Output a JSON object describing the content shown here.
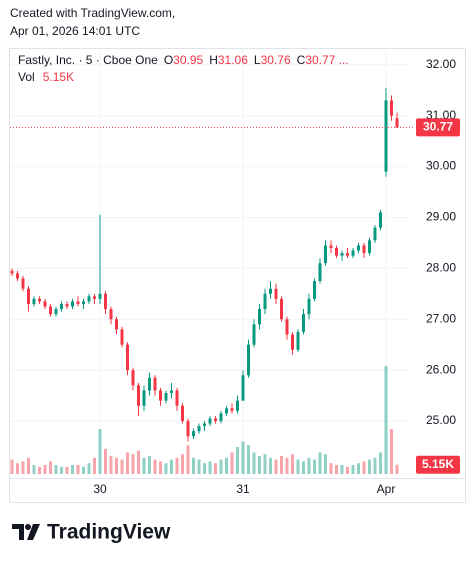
{
  "header": {
    "line1": "Created with TradingView.com,",
    "line2": "Apr 01, 2026 14:01 UTC"
  },
  "footer": {
    "brand": "TradingView"
  },
  "chart_data": {
    "type": "candlestick",
    "legend": {
      "symbol": "Fastly, Inc. · 5 · Cboe One",
      "ohlc": [
        {
          "label": "O",
          "value": 30.95
        },
        {
          "label": "H",
          "value": 31.06
        },
        {
          "label": "L",
          "value": 30.76
        },
        {
          "label": "C",
          "value": 30.77,
          "value_label": "30.77 ..."
        }
      ],
      "volume": {
        "label": "Vol",
        "value": 5150,
        "value_label": "5.15K"
      }
    },
    "up_color": "#089981",
    "down_color": "#f23645",
    "categories": [
      null,
      null,
      null,
      null,
      null,
      null,
      null,
      null,
      null,
      null,
      null,
      null,
      null,
      null,
      null,
      null,
      "30",
      null,
      null,
      null,
      null,
      null,
      null,
      null,
      null,
      null,
      null,
      null,
      null,
      null,
      null,
      null,
      null,
      null,
      null,
      null,
      null,
      null,
      null,
      null,
      null,
      null,
      "31",
      null,
      null,
      null,
      null,
      null,
      null,
      null,
      null,
      null,
      null,
      null,
      null,
      null,
      null,
      null,
      null,
      null,
      null,
      null,
      null,
      null,
      null,
      null,
      null,
      null,
      "Apr",
      null,
      null
    ],
    "open": [
      27.95,
      27.9,
      27.8,
      27.6,
      27.3,
      27.4,
      27.35,
      27.25,
      27.1,
      27.2,
      27.3,
      27.25,
      27.35,
      27.3,
      27.35,
      27.45,
      27.4,
      27.5,
      27.2,
      27.0,
      26.8,
      26.5,
      26.0,
      25.7,
      25.3,
      25.6,
      25.85,
      25.6,
      25.4,
      25.55,
      25.6,
      25.3,
      25.0,
      24.7,
      24.8,
      24.9,
      24.95,
      25.05,
      25.0,
      25.15,
      25.25,
      25.2,
      25.4,
      25.9,
      26.5,
      26.9,
      27.2,
      27.5,
      27.6,
      27.4,
      27.0,
      26.7,
      26.4,
      26.75,
      27.1,
      27.4,
      27.75,
      28.1,
      28.45,
      28.4,
      28.25,
      28.3,
      28.25,
      28.35,
      28.45,
      28.3,
      28.55,
      28.8,
      29.9,
      31.3,
      30.95
    ],
    "high": [
      28.0,
      27.95,
      27.85,
      27.65,
      27.45,
      27.45,
      27.4,
      27.3,
      27.25,
      27.35,
      27.35,
      27.4,
      27.45,
      27.4,
      27.5,
      27.5,
      29.05,
      27.55,
      27.25,
      27.05,
      26.85,
      26.55,
      26.05,
      25.75,
      25.7,
      25.95,
      25.9,
      25.65,
      25.6,
      25.75,
      25.65,
      25.35,
      25.05,
      24.85,
      24.95,
      25.0,
      25.1,
      25.1,
      25.2,
      25.3,
      25.35,
      25.5,
      26.0,
      26.6,
      27.0,
      27.3,
      27.6,
      27.75,
      27.7,
      27.45,
      27.05,
      26.75,
      26.8,
      27.2,
      27.5,
      27.8,
      28.2,
      28.55,
      28.55,
      28.45,
      28.35,
      28.4,
      28.4,
      28.5,
      28.5,
      28.6,
      28.85,
      29.15,
      31.55,
      31.4,
      31.06
    ],
    "low": [
      27.85,
      27.75,
      27.55,
      27.15,
      27.25,
      27.3,
      27.2,
      27.05,
      27.05,
      27.15,
      27.2,
      27.2,
      27.25,
      27.2,
      27.3,
      27.3,
      27.3,
      27.1,
      26.9,
      26.7,
      26.45,
      25.9,
      25.6,
      25.1,
      25.2,
      25.5,
      25.5,
      25.3,
      25.35,
      25.45,
      25.2,
      24.95,
      24.6,
      24.65,
      24.75,
      24.8,
      24.9,
      24.95,
      24.95,
      25.1,
      25.15,
      25.15,
      25.4,
      25.85,
      26.45,
      26.8,
      27.1,
      27.4,
      27.3,
      26.95,
      26.6,
      26.3,
      26.35,
      26.7,
      27.0,
      27.35,
      27.7,
      28.05,
      28.3,
      28.2,
      28.15,
      28.2,
      28.2,
      28.3,
      28.2,
      28.25,
      28.5,
      28.75,
      29.8,
      30.9,
      30.76
    ],
    "close": [
      27.9,
      27.8,
      27.6,
      27.3,
      27.4,
      27.35,
      27.25,
      27.1,
      27.2,
      27.3,
      27.25,
      27.35,
      27.3,
      27.35,
      27.45,
      27.4,
      27.5,
      27.2,
      27.0,
      26.8,
      26.5,
      26.0,
      25.7,
      25.3,
      25.6,
      25.85,
      25.6,
      25.4,
      25.55,
      25.6,
      25.3,
      25.0,
      24.7,
      24.8,
      24.9,
      24.95,
      25.05,
      25.0,
      25.15,
      25.25,
      25.2,
      25.4,
      25.9,
      26.5,
      26.9,
      27.2,
      27.5,
      27.6,
      27.4,
      27.0,
      26.7,
      26.4,
      26.75,
      27.1,
      27.4,
      27.75,
      28.1,
      28.45,
      28.4,
      28.25,
      28.3,
      28.25,
      28.35,
      28.45,
      28.3,
      28.55,
      28.8,
      29.1,
      31.3,
      31.0,
      30.77
    ],
    "volume": [
      8000,
      6000,
      7000,
      9000,
      5000,
      4000,
      5000,
      7000,
      5000,
      4000,
      4000,
      5000,
      5000,
      4000,
      6000,
      9000,
      25000,
      14000,
      10000,
      9000,
      8000,
      12000,
      11000,
      13000,
      9000,
      10000,
      8000,
      7000,
      6000,
      8000,
      9000,
      11000,
      16000,
      9000,
      8000,
      6000,
      7000,
      6000,
      8000,
      9000,
      12000,
      15000,
      18000,
      16000,
      12000,
      10000,
      11000,
      9000,
      8000,
      10000,
      9000,
      11000,
      8000,
      7000,
      9000,
      8000,
      12000,
      11000,
      6000,
      5000,
      5000,
      4000,
      5000,
      6000,
      7000,
      8000,
      9000,
      12000,
      60000,
      25000,
      5150
    ],
    "ylim": [
      23.88,
      32.33
    ],
    "yticks": [
      {
        "value": 25,
        "label": "25.00"
      },
      {
        "value": 26,
        "label": "26.00"
      },
      {
        "value": 27,
        "label": "27.00"
      },
      {
        "value": 28,
        "label": "28.00"
      },
      {
        "value": 29,
        "label": "29.00"
      },
      {
        "value": 30,
        "label": "30.00"
      },
      {
        "value": 31,
        "label": "31.00"
      },
      {
        "value": 32,
        "label": "32.00"
      }
    ],
    "grid": true
  }
}
